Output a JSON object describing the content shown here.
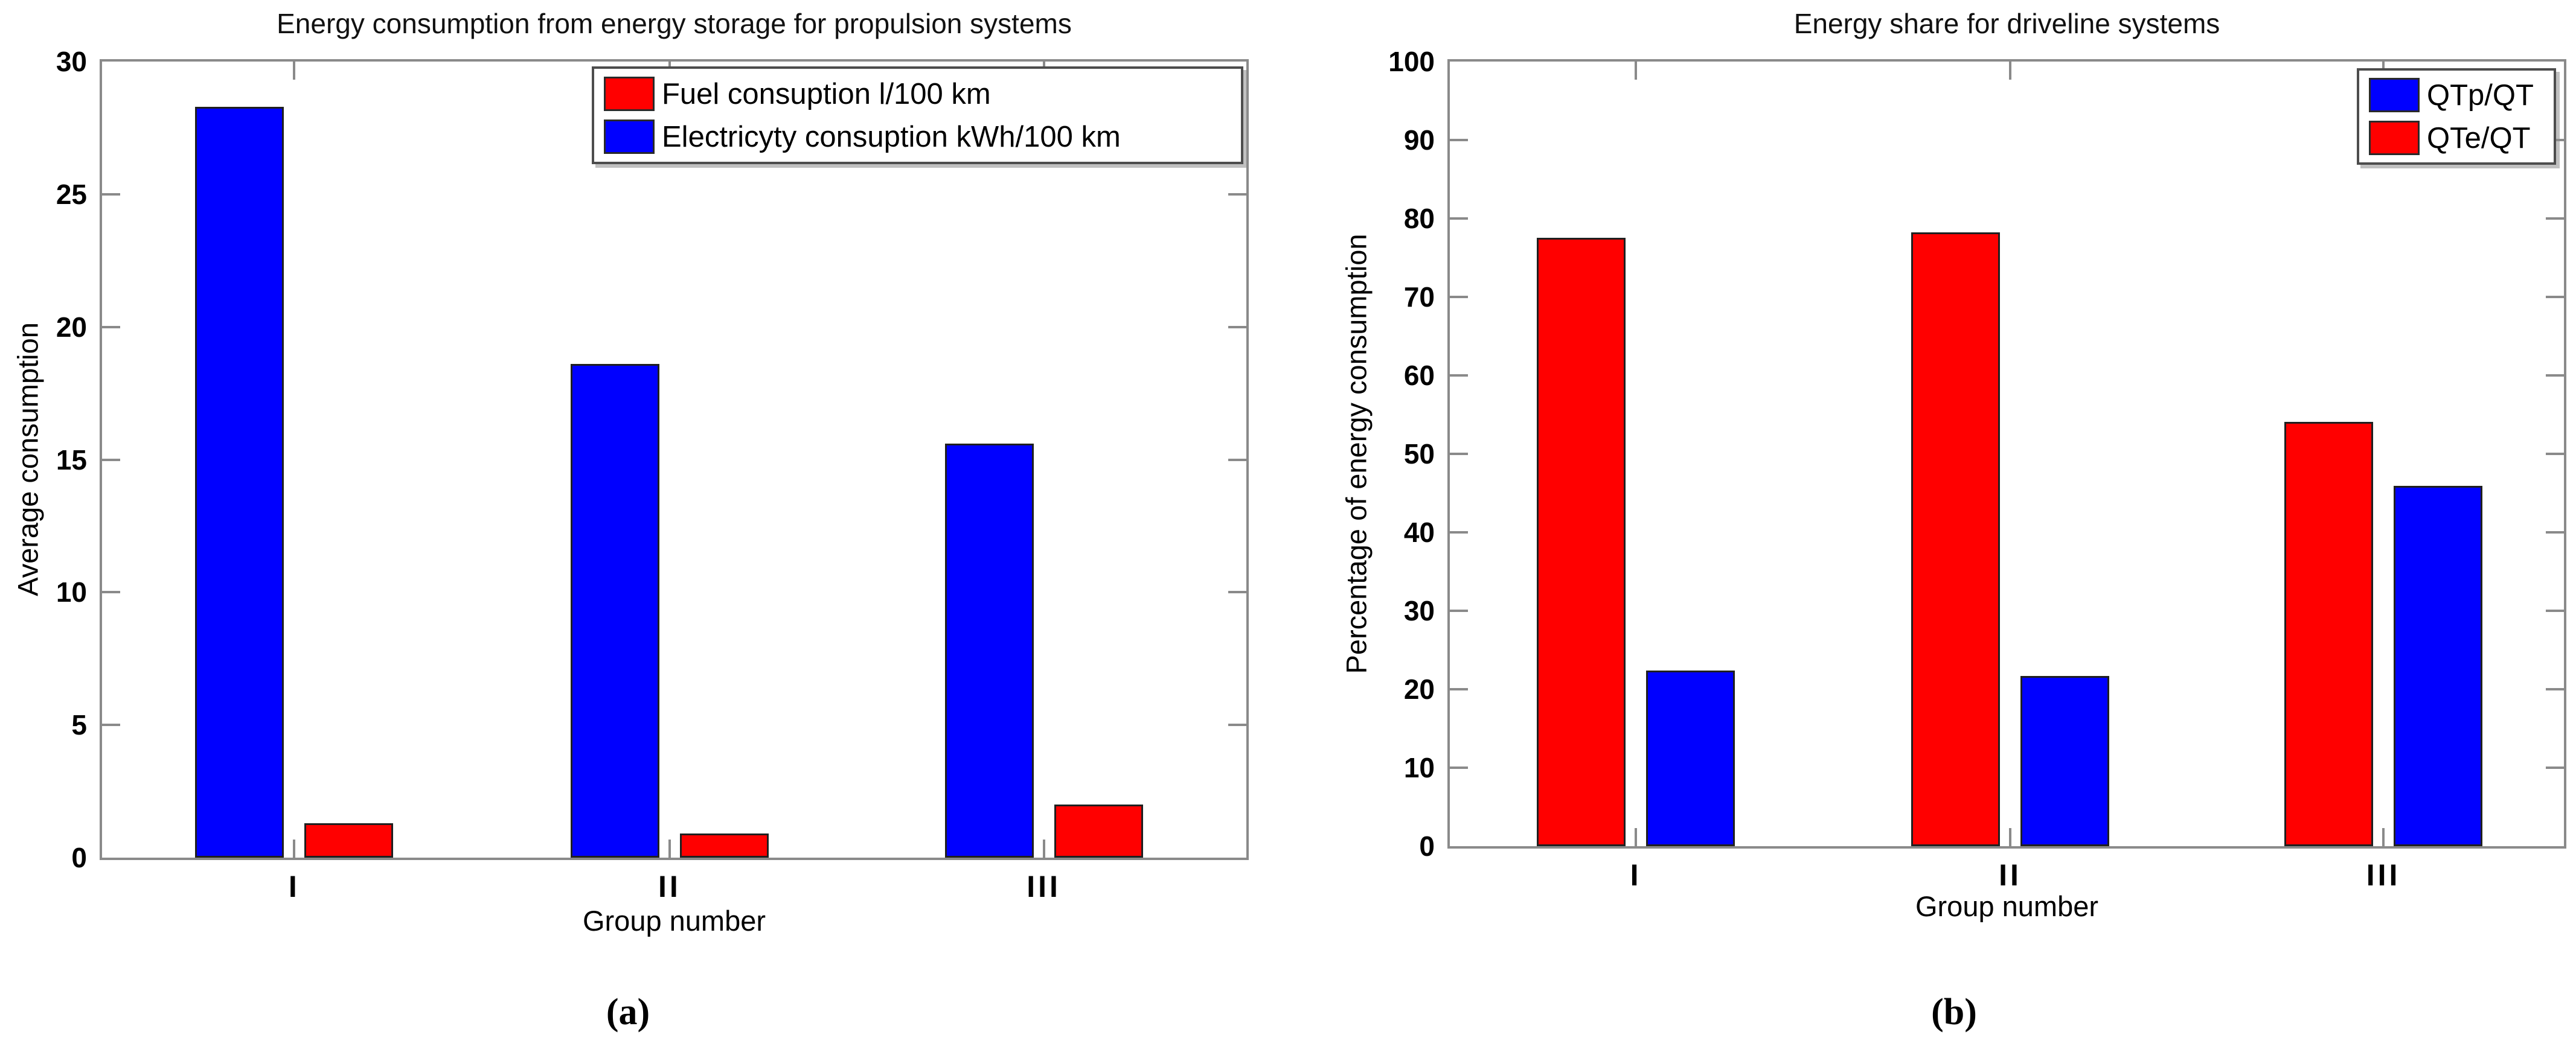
{
  "figure": {
    "caption_a": "(a)",
    "caption_b": "(b)"
  },
  "colors": {
    "bar_red": "#ff0000",
    "bar_blue": "#0000ff",
    "axis_gray": "#8a8a8a",
    "text": "#000000"
  },
  "chart_data": [
    {
      "type": "bar",
      "title": "Energy consumption from energy storage for propulsion systems",
      "xlabel": "Group number",
      "ylabel": "Average consumption",
      "categories": [
        "I",
        "II",
        "III"
      ],
      "series": [
        {
          "name": "Fuel consuption l/100 km",
          "color": "#ff0000",
          "values": [
            1.3,
            0.9,
            2.0
          ]
        },
        {
          "name": "Electricyty consuption kWh/100 km",
          "color": "#0000ff",
          "values": [
            28.3,
            18.6,
            15.6
          ]
        }
      ],
      "bar_draw_order": [
        1,
        0
      ],
      "ylim": [
        0,
        30
      ],
      "yticks": [
        0,
        5,
        10,
        15,
        20,
        25,
        30
      ],
      "grid": false,
      "legend_position": "top-right-inside"
    },
    {
      "type": "bar",
      "title": "Energy share for driveline systems",
      "xlabel": "Group number",
      "ylabel": "Percentage of energy consumption",
      "categories": [
        "I",
        "II",
        "III"
      ],
      "series": [
        {
          "name": "QTp/QT",
          "color": "#0000ff",
          "values": [
            22.4,
            21.7,
            45.9
          ]
        },
        {
          "name": "QTe/QT",
          "color": "#ff0000",
          "values": [
            77.5,
            78.2,
            54.1
          ]
        }
      ],
      "bar_draw_order": [
        1,
        0
      ],
      "ylim": [
        0,
        100
      ],
      "yticks": [
        0,
        10,
        20,
        30,
        40,
        50,
        60,
        70,
        80,
        90,
        100
      ],
      "grid": false,
      "legend_position": "top-right-inside"
    }
  ]
}
